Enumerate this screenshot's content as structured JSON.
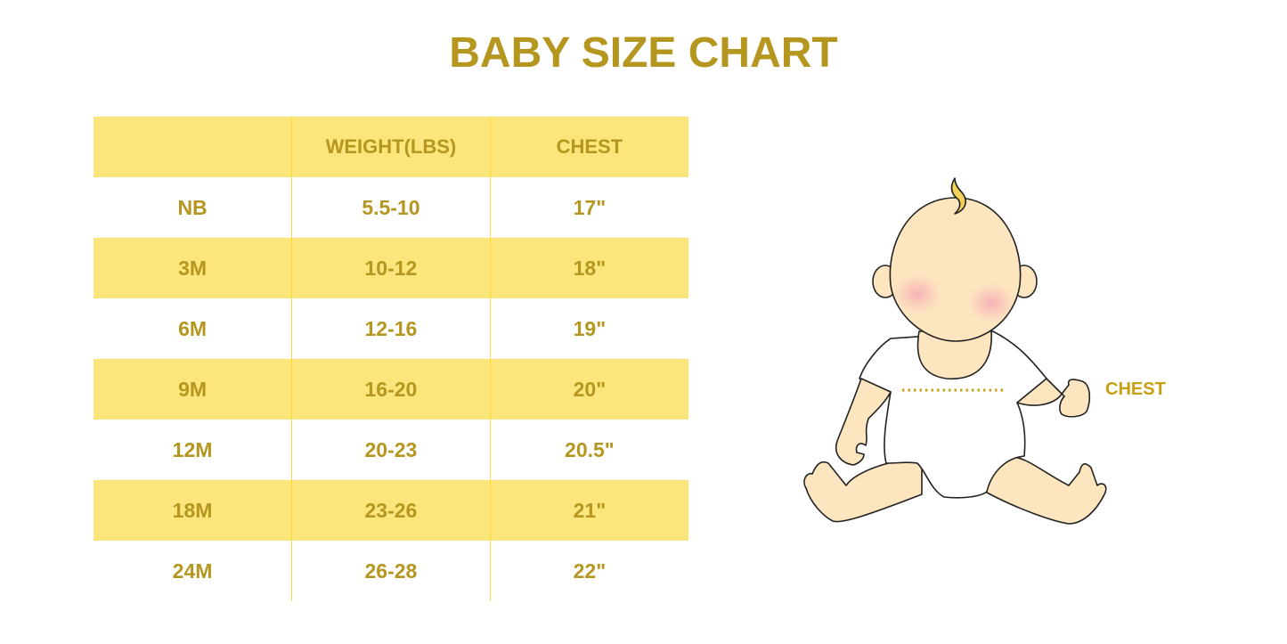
{
  "title": "BABY SIZE CHART",
  "table": {
    "headers": [
      "",
      "WEIGHT(LBS)",
      "CHEST"
    ],
    "rows": [
      [
        "NB",
        "5.5-10",
        "17\""
      ],
      [
        "3M",
        "10-12",
        "18\""
      ],
      [
        "6M",
        "12-16",
        "19\""
      ],
      [
        "9M",
        "16-20",
        "20\""
      ],
      [
        "12M",
        "20-23",
        "20.5\""
      ],
      [
        "18M",
        "23-26",
        "21\""
      ],
      [
        "24M",
        "26-28",
        "22\""
      ]
    ]
  },
  "illustration": {
    "chest_label": "CHEST"
  },
  "colors": {
    "accent": "#b5961e",
    "row_highlight": "#fce57a",
    "skin": "#fde5c0",
    "cheek": "#f7b8bd",
    "hair": "#f5d15a"
  }
}
